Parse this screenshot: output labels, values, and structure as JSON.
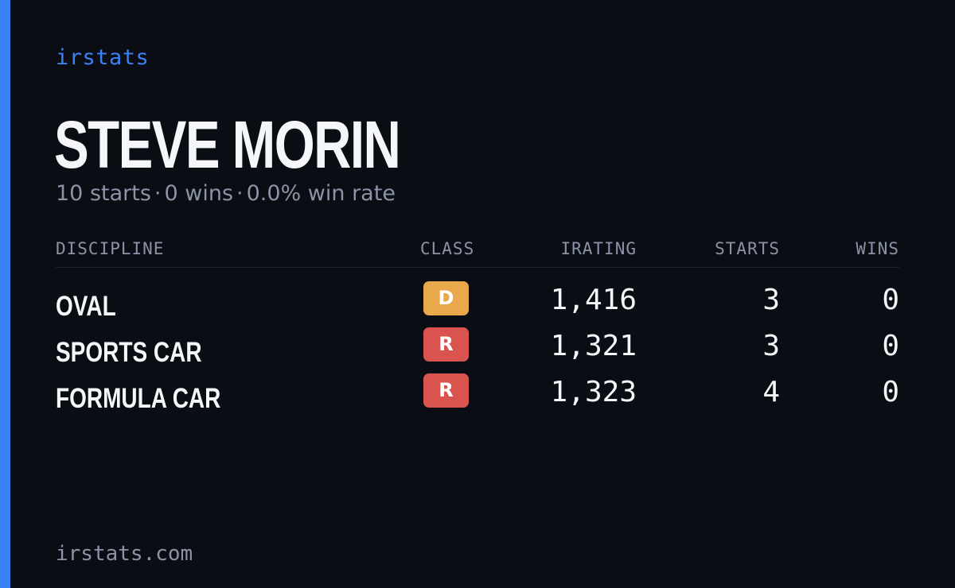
{
  "brand": "irstats",
  "driver": {
    "name": "STEVE MORIN"
  },
  "summary": {
    "starts": "10 starts",
    "wins": "0 wins",
    "win_rate": "0.0% win rate",
    "separator": "·"
  },
  "table": {
    "headers": {
      "discipline": "DISCIPLINE",
      "class": "CLASS",
      "irating": "IRATING",
      "starts": "STARTS",
      "wins": "WINS"
    },
    "rows": [
      {
        "discipline": "OVAL",
        "class": "D",
        "class_color": "#e9a94b",
        "irating": "1,416",
        "starts": "3",
        "wins": "0"
      },
      {
        "discipline": "SPORTS CAR",
        "class": "R",
        "class_color": "#d9534f",
        "irating": "1,321",
        "starts": "3",
        "wins": "0"
      },
      {
        "discipline": "FORMULA CAR",
        "class": "R",
        "class_color": "#d9534f",
        "irating": "1,323",
        "starts": "4",
        "wins": "0"
      }
    ]
  },
  "footer": {
    "url": "irstats.com"
  },
  "colors": {
    "accent": "#3b82f6",
    "background": "#0a0d14",
    "text": "#f4f6fa",
    "muted": "#8b93a7"
  }
}
